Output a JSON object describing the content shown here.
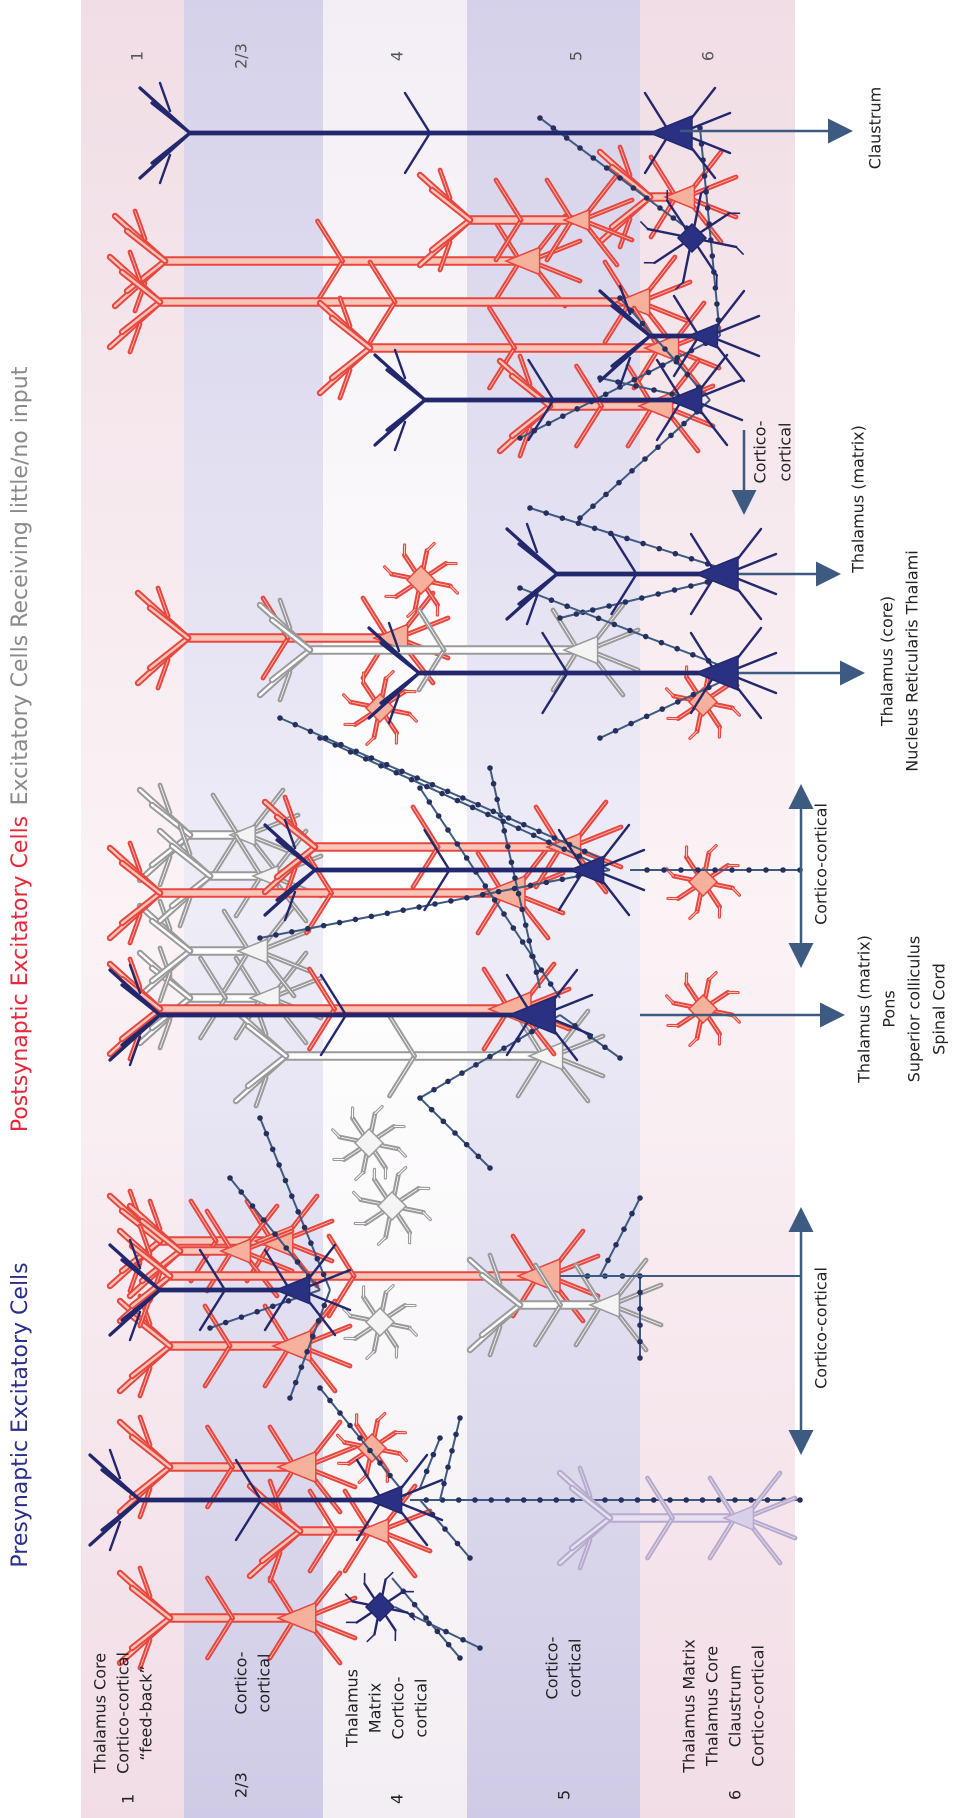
{
  "legend": [
    {
      "label": "Presynaptic Excitatory Cells",
      "color": "#2b2f8a"
    },
    {
      "label": "Postsynaptic Excitatory Cells",
      "color": "#e8283a"
    },
    {
      "label": "Excitatory Cells Receiving little/no input",
      "color": "#8a8a8a"
    }
  ],
  "layers": [
    {
      "label": "1",
      "inputs": [
        "Thalamus Core",
        "Cortico-cortical",
        "“feed-back”"
      ]
    },
    {
      "label": "2/3",
      "inputs": [
        "Cortico-",
        "cortical"
      ]
    },
    {
      "label": "4",
      "inputs": [
        "Thalamus",
        "Matrix",
        "Cortico-",
        "cortical"
      ]
    },
    {
      "label": "5",
      "inputs": [
        "Cortico-",
        "cortical"
      ]
    },
    {
      "label": "6",
      "inputs": [
        "Thalamus Matrix",
        "Thalamus Core",
        "Claustrum",
        "Cortico-cortical"
      ]
    }
  ],
  "outputs": [
    {
      "lines": [
        "Cortico-cortical"
      ]
    },
    {
      "lines": [
        "Thalamus (matrix)",
        "Pons",
        "Superior colliculus",
        "Spinal Cord"
      ]
    },
    {
      "lines": [
        "Cortico-cortical"
      ]
    },
    {
      "lines": [
        "Thalamus (core)",
        "Nucleus Reticularis Thalami"
      ]
    },
    {
      "lines": [
        "Thalamus (matrix)"
      ]
    },
    {
      "lines": [
        "Cortico-",
        "cortical"
      ]
    },
    {
      "lines": [
        "Claustrum"
      ]
    }
  ]
}
